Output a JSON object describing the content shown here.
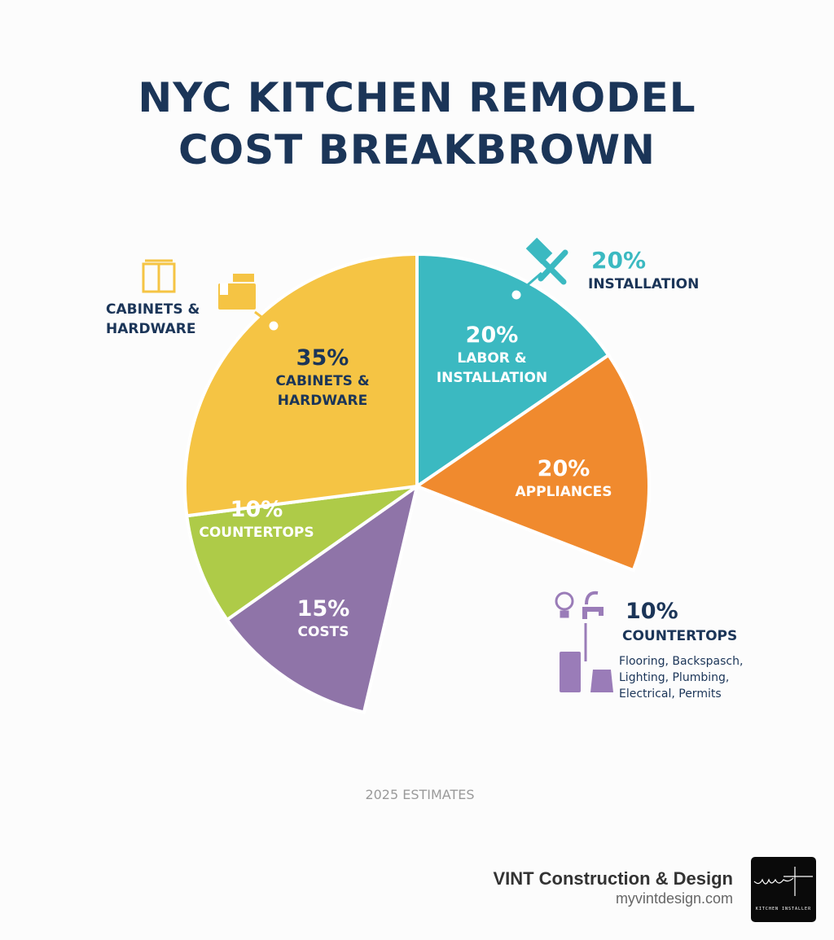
{
  "title_line1": "NYC KITCHEN REMODEL",
  "title_line2": "COST BREAKBROWN",
  "chart_data": {
    "type": "pie",
    "title": "NYC KITCHEN REMODEL COST BREAKBROWN",
    "slices": [
      {
        "label": "LABOR & INSTALLATION",
        "value": 20,
        "value_label": "20%",
        "color": "#3bb9c1"
      },
      {
        "label": "APPLIANCES",
        "value": 20,
        "value_label": "20%",
        "color": "#f08a2e"
      },
      {
        "label": "COSTS",
        "value": 15,
        "value_label": "15%",
        "color": "#8f74a8"
      },
      {
        "label": "COUNTERTOPS",
        "value": 10,
        "value_label": "10%",
        "color": "#aecb48"
      },
      {
        "label": "CABINETS & HARDWARE",
        "value": 35,
        "value_label": "35%",
        "color": "#f5c444"
      }
    ],
    "annotations": {
      "cabinets": {
        "line1": "CABINETS &",
        "line2": "HARDWARE"
      },
      "installation": {
        "pct": "20%",
        "label": "INSTALLATION",
        "color": "#3bb9c1"
      },
      "countertops": {
        "pct": "10%",
        "label": "COUNTERTOPS",
        "notes": [
          "Flooring, Backspasch,",
          "Lighting, Plumbing,",
          "Electrical, Permits"
        ]
      }
    },
    "footnote": "2025 ESTIMATES"
  },
  "labels": {
    "labor_line1": "LABOR &",
    "labor_line2": "INSTALLATION",
    "cab_line1": "CABINETS &",
    "cab_line2": "HARDWARE"
  },
  "brand": {
    "name": "VINT Construction & Design",
    "url": "myvintdesign.com",
    "logo_text": "vint",
    "logo_sub": "KITCHEN INSTALLER"
  }
}
